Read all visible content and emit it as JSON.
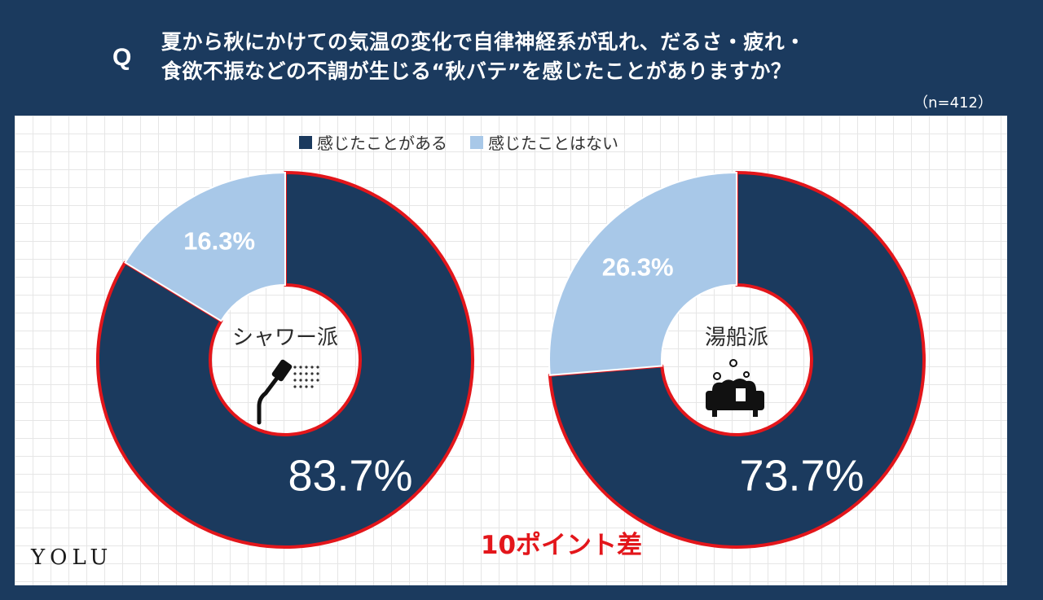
{
  "header": {
    "q_mark": "Q",
    "question_line1": "夏から秋にかけての気温の変化で自律神経系が乱れ、だるさ・疲れ・",
    "question_line2": "食欲不振などの不調が生じる“秋バテ”を感じたことがありますか？",
    "sample_size": "（n=412）"
  },
  "legend": [
    {
      "label": "感じたことがある",
      "color": "#1b3a5e"
    },
    {
      "label": "感じたことはない",
      "color": "#a8c8e8"
    }
  ],
  "annotation": "10ポイント差",
  "brand": "YOLU",
  "colors": {
    "background": "#1b3a5e",
    "yes": "#1b3a5e",
    "no": "#a8c8e8",
    "highlight": "#e3161b"
  },
  "chart_data": [
    {
      "type": "pie",
      "subtype": "donut",
      "center_label": "シャワー派",
      "center_icon": "shower-icon",
      "categories": [
        "感じたことがある",
        "感じたことはない"
      ],
      "values": [
        83.7,
        16.3
      ],
      "labels": [
        "83.7%",
        "16.3%"
      ]
    },
    {
      "type": "pie",
      "subtype": "donut",
      "center_label": "湯船派",
      "center_icon": "bathtub-icon",
      "categories": [
        "感じたことがある",
        "感じたことはない"
      ],
      "values": [
        73.7,
        26.3
      ],
      "labels": [
        "73.7%",
        "26.3%"
      ]
    }
  ]
}
